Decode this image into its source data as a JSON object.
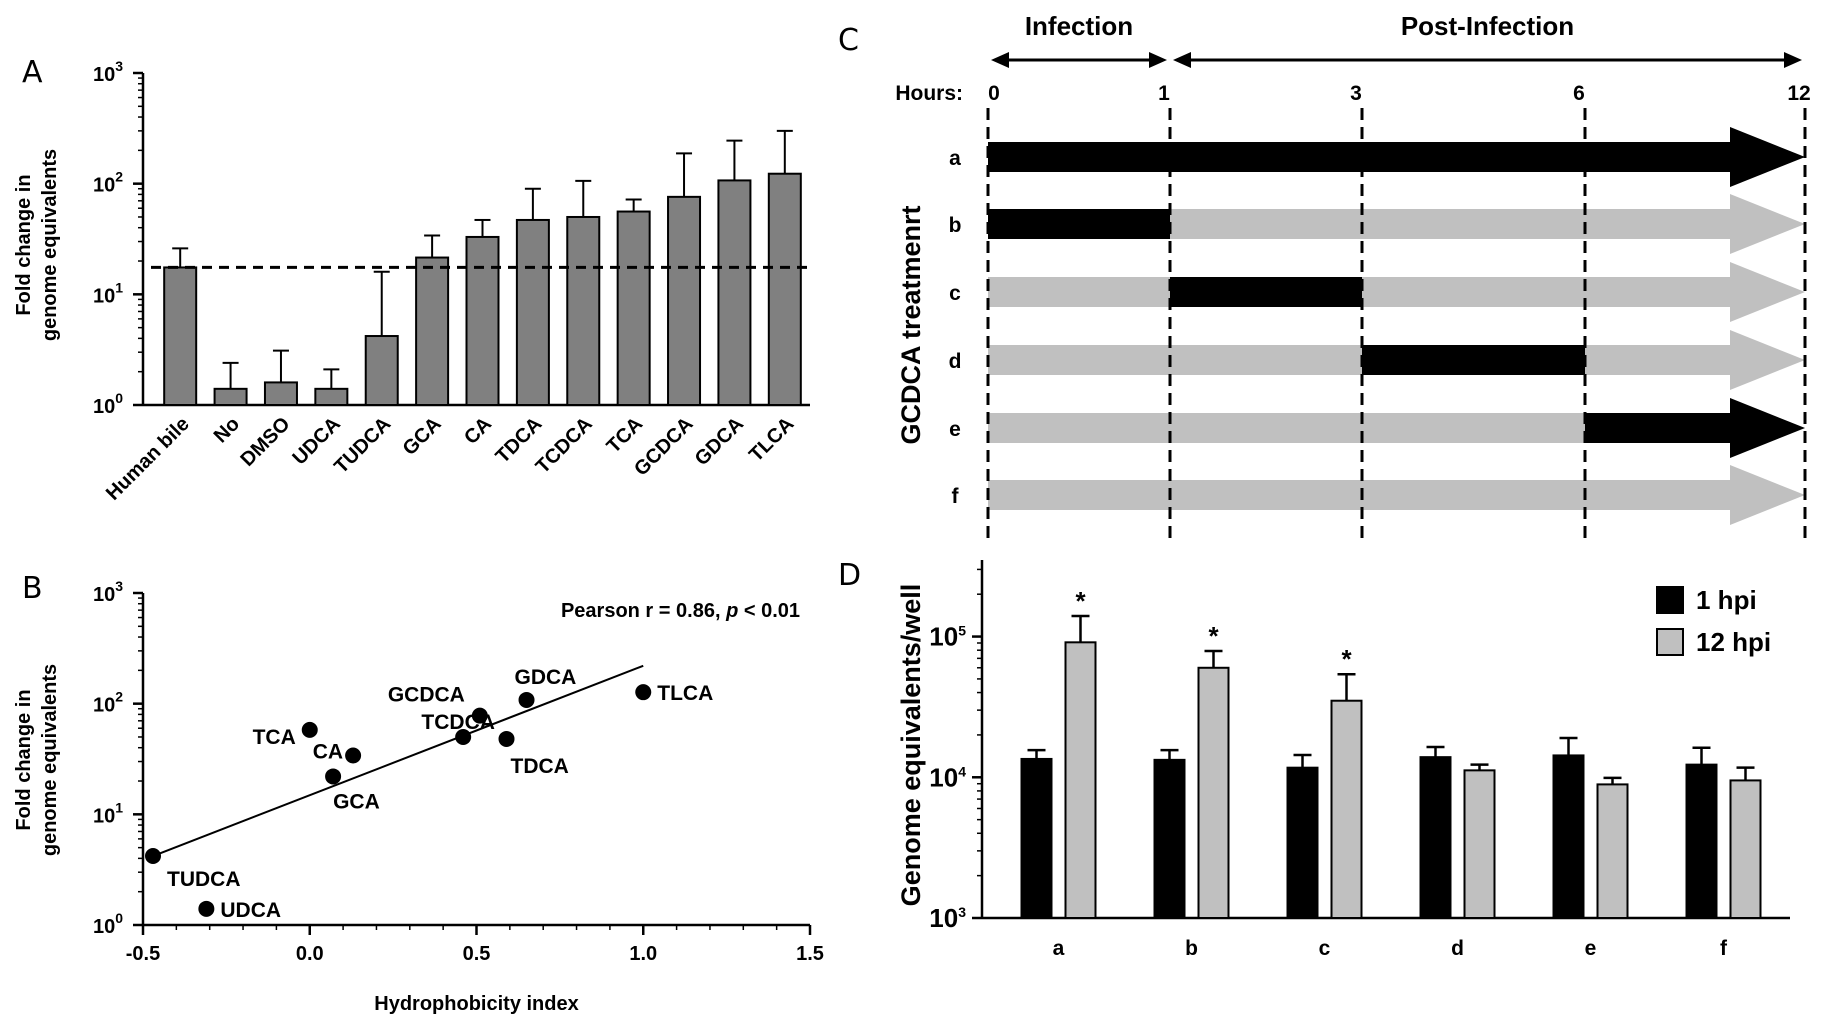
{
  "panel_labels": {
    "a": "A",
    "b": "B",
    "c": "C",
    "d": "D"
  },
  "colors": {
    "gray_bar": "#808080",
    "light_gray": "#c0c0c0",
    "black": "#000000"
  },
  "chart_data": [
    {
      "panel": "A",
      "type": "bar",
      "y_scale": "log",
      "ylim": [
        1,
        1000
      ],
      "ylabel_lines": [
        "Fold change in",
        "genome equivalents"
      ],
      "y_ticks": [
        {
          "base": "10",
          "exp": "0"
        },
        {
          "base": "10",
          "exp": "1"
        },
        {
          "base": "10",
          "exp": "2"
        },
        {
          "base": "10",
          "exp": "3"
        }
      ],
      "categories": [
        "Human bile",
        "No",
        "DMSO",
        "UDCA",
        "TUDCA",
        "GCA",
        "CA",
        "TDCA",
        "TCDCA",
        "TCA",
        "GCDCA",
        "GDCA",
        "TLCA"
      ],
      "values": [
        17.5,
        1.4,
        1.6,
        1.4,
        4.2,
        21.5,
        33,
        47,
        50,
        56,
        76,
        107,
        123
      ],
      "error_upper": [
        26,
        2.4,
        3.1,
        2.1,
        16,
        34,
        47,
        90,
        106,
        72,
        188,
        245,
        300
      ],
      "reference_line": 17.5
    },
    {
      "panel": "B",
      "type": "scatter",
      "y_scale": "log",
      "ylim": [
        1,
        1000
      ],
      "xlim": [
        -0.5,
        1.5
      ],
      "xlabel": "Hydrophobicity index",
      "ylabel_lines": [
        "Fold change in",
        "genome equivalents"
      ],
      "x_ticks": [
        "-0.5",
        "0.0",
        "0.5",
        "1.0",
        "1.5"
      ],
      "y_ticks": [
        {
          "base": "10",
          "exp": "0"
        },
        {
          "base": "10",
          "exp": "1"
        },
        {
          "base": "10",
          "exp": "2"
        },
        {
          "base": "10",
          "exp": "3"
        }
      ],
      "annotation": {
        "prefix": "Pearson r = 0.86, ",
        "italic": "p",
        "suffix": " < 0.01"
      },
      "points": [
        {
          "label": "TUDCA",
          "x": -0.47,
          "y": 4.2
        },
        {
          "label": "UDCA",
          "x": -0.31,
          "y": 1.4
        },
        {
          "label": "TCA",
          "x": 0.0,
          "y": 58
        },
        {
          "label": "GCA",
          "x": 0.07,
          "y": 22
        },
        {
          "label": "CA",
          "x": 0.13,
          "y": 34
        },
        {
          "label": "TCDCA",
          "x": 0.46,
          "y": 50
        },
        {
          "label": "GCDCA",
          "x": 0.51,
          "y": 78
        },
        {
          "label": "TDCA",
          "x": 0.59,
          "y": 48
        },
        {
          "label": "GDCA",
          "x": 0.65,
          "y": 108
        },
        {
          "label": "TLCA",
          "x": 1.0,
          "y": 127
        }
      ],
      "fit_line": [
        {
          "x": -0.47,
          "y": 4.2
        },
        {
          "x": 1.0,
          "y": 220
        }
      ]
    },
    {
      "panel": "C",
      "type": "timeline",
      "phases": [
        {
          "label": "Infection",
          "from": 0,
          "to": 1
        },
        {
          "label": "Post-Infection",
          "from": 1,
          "to": 12
        }
      ],
      "hours_label": "Hours:",
      "hour_marks": [
        "0",
        "1",
        "3",
        "6",
        "12"
      ],
      "ylabel": "GCDCA treatmenrt",
      "rows": [
        {
          "label": "a",
          "gcdca_windows": [
            [
              0,
              12
            ]
          ]
        },
        {
          "label": "b",
          "gcdca_windows": [
            [
              0,
              1
            ]
          ]
        },
        {
          "label": "c",
          "gcdca_windows": [
            [
              1,
              3
            ]
          ]
        },
        {
          "label": "d",
          "gcdca_windows": [
            [
              3,
              6
            ]
          ]
        },
        {
          "label": "e",
          "gcdca_windows": [
            [
              6,
              12
            ]
          ]
        },
        {
          "label": "f",
          "gcdca_windows": []
        }
      ]
    },
    {
      "panel": "D",
      "type": "bar",
      "y_scale": "log",
      "ylim": [
        1000,
        350000
      ],
      "ylabel": "Genome  equivalents/well",
      "y_ticks": [
        {
          "base": "10",
          "exp": "3"
        },
        {
          "base": "10",
          "exp": "4"
        },
        {
          "base": "10",
          "exp": "5"
        }
      ],
      "categories": [
        "a",
        "b",
        "c",
        "d",
        "e",
        "f"
      ],
      "series": [
        {
          "name": "1 hpi",
          "color": "#000000",
          "values": [
            13500,
            13300,
            11700,
            13900,
            14300,
            12300
          ],
          "error_upper": [
            15600,
            15600,
            14400,
            16400,
            19000,
            16200
          ]
        },
        {
          "name": "12 hpi",
          "color": "#c0c0c0",
          "values": [
            91000,
            60000,
            35000,
            11200,
            8900,
            9500
          ],
          "error_upper": [
            140000,
            79000,
            54000,
            12300,
            9900,
            11700
          ]
        }
      ],
      "significance": [
        "*",
        "*",
        "*",
        "",
        "",
        ""
      ]
    }
  ]
}
